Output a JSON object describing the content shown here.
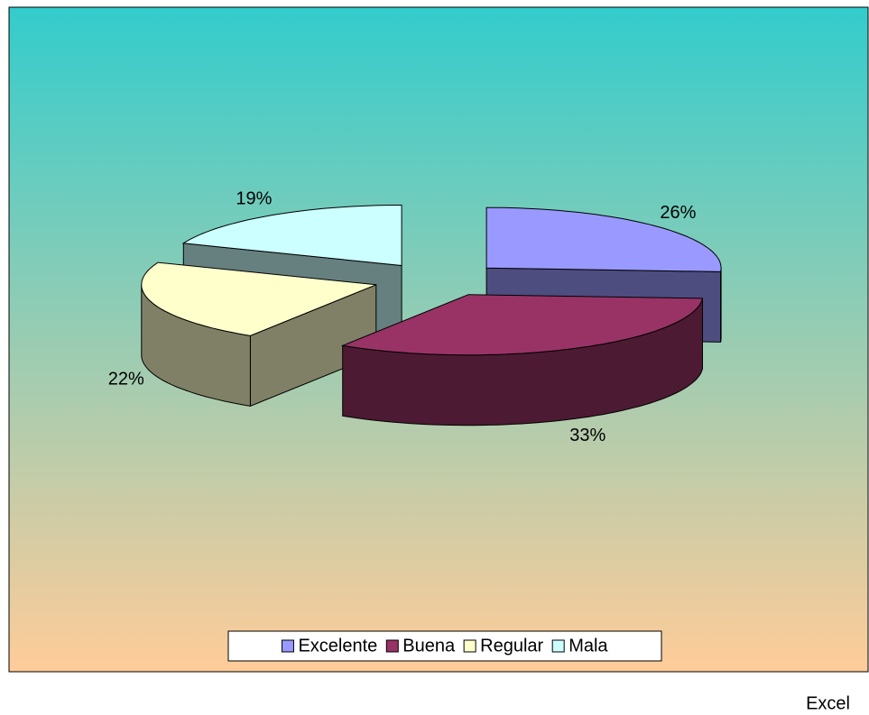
{
  "chart_data": {
    "type": "pie",
    "categories": [
      "Excelente",
      "Buena",
      "Regular",
      "Mala"
    ],
    "values": [
      26,
      33,
      22,
      19
    ],
    "value_labels": [
      "26%",
      "33%",
      "22%",
      "19%"
    ],
    "colors": [
      "#9999ff",
      "#993366",
      "#ffffcc",
      "#ccffff"
    ],
    "legend": "bottom",
    "caption": "Excel"
  }
}
